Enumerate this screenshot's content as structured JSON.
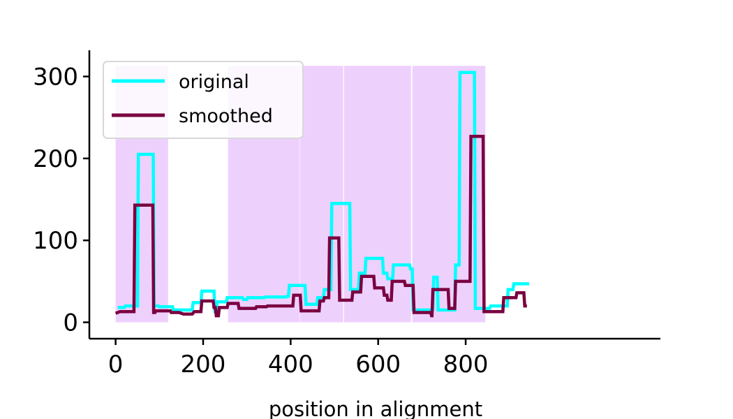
{
  "chart_data": {
    "type": "line",
    "title": "",
    "xlabel": "position in alignment",
    "ylabel": "",
    "xlim": [
      -60,
      1245
    ],
    "ylim": [
      -20,
      332
    ],
    "xticks": [
      0,
      200,
      400,
      600,
      800
    ],
    "yticks": [
      0,
      100,
      200,
      300
    ],
    "grid": false,
    "legend_position": "top-left",
    "shaded_regions": [
      [
        0,
        120
      ],
      [
        257,
        420
      ],
      [
        421,
        520
      ],
      [
        522,
        675
      ],
      [
        678,
        845
      ]
    ],
    "series": [
      {
        "name": "original",
        "color": "#00ffff",
        "x": [
          5,
          20,
          22,
          50,
          52,
          86,
          88,
          98,
          100,
          130,
          132,
          175,
          177,
          195,
          197,
          225,
          227,
          230,
          232,
          253,
          255,
          290,
          292,
          300,
          302,
          340,
          342,
          390,
          392,
          395,
          397,
          433,
          435,
          460,
          462,
          475,
          477,
          492,
          494,
          498,
          500,
          535,
          537,
          555,
          557,
          570,
          572,
          610,
          612,
          620,
          622,
          633,
          635,
          647,
          649,
          672,
          674,
          678,
          680,
          720,
          722,
          725,
          727,
          735,
          737,
          775,
          777,
          785,
          787,
          820,
          822,
          855,
          857,
          895,
          897,
          908,
          910,
          945
        ],
        "y": [
          18,
          18,
          20,
          20,
          205,
          205,
          20,
          20,
          19,
          19,
          15,
          15,
          24,
          24,
          38,
          38,
          13,
          13,
          25,
          25,
          30,
          30,
          28,
          28,
          30,
          30,
          31,
          31,
          32,
          32,
          45,
          45,
          22,
          22,
          30,
          30,
          40,
          40,
          145,
          145,
          145,
          145,
          40,
          40,
          60,
          60,
          78,
          78,
          60,
          60,
          53,
          53,
          70,
          70,
          70,
          70,
          65,
          65,
          15,
          15,
          16,
          16,
          55,
          55,
          15,
          15,
          70,
          70,
          305,
          305,
          17,
          17,
          20,
          20,
          40,
          40,
          47,
          47
        ]
      },
      {
        "name": "smoothed",
        "color": "#7a0040",
        "x": [
          0,
          10,
          42,
          44,
          85,
          87,
          90,
          92,
          110,
          125,
          127,
          145,
          155,
          175,
          180,
          182,
          195,
          197,
          223,
          225,
          228,
          230,
          235,
          237,
          255,
          257,
          280,
          282,
          320,
          322,
          345,
          347,
          405,
          407,
          422,
          424,
          465,
          467,
          475,
          477,
          487,
          489,
          510,
          512,
          540,
          542,
          560,
          562,
          590,
          592,
          612,
          614,
          620,
          622,
          630,
          632,
          660,
          662,
          680,
          682,
          720,
          722,
          723,
          725,
          760,
          762,
          775,
          777,
          810,
          812,
          840,
          842,
          885,
          887,
          915,
          917,
          933,
          935,
          940
        ],
        "y": [
          11,
          13,
          13,
          143,
          143,
          12,
          12,
          14,
          14,
          14,
          12,
          12,
          10,
          10,
          13,
          13,
          13,
          26,
          26,
          18,
          18,
          8,
          8,
          18,
          18,
          23,
          23,
          17,
          17,
          19,
          19,
          20,
          20,
          33,
          33,
          14,
          14,
          26,
          26,
          30,
          30,
          103,
          103,
          27,
          27,
          37,
          37,
          56,
          56,
          42,
          42,
          33,
          33,
          27,
          27,
          50,
          50,
          45,
          45,
          12,
          12,
          8,
          8,
          40,
          40,
          17,
          17,
          50,
          50,
          227,
          227,
          13,
          13,
          30,
          30,
          36,
          36,
          20,
          20
        ]
      }
    ]
  }
}
